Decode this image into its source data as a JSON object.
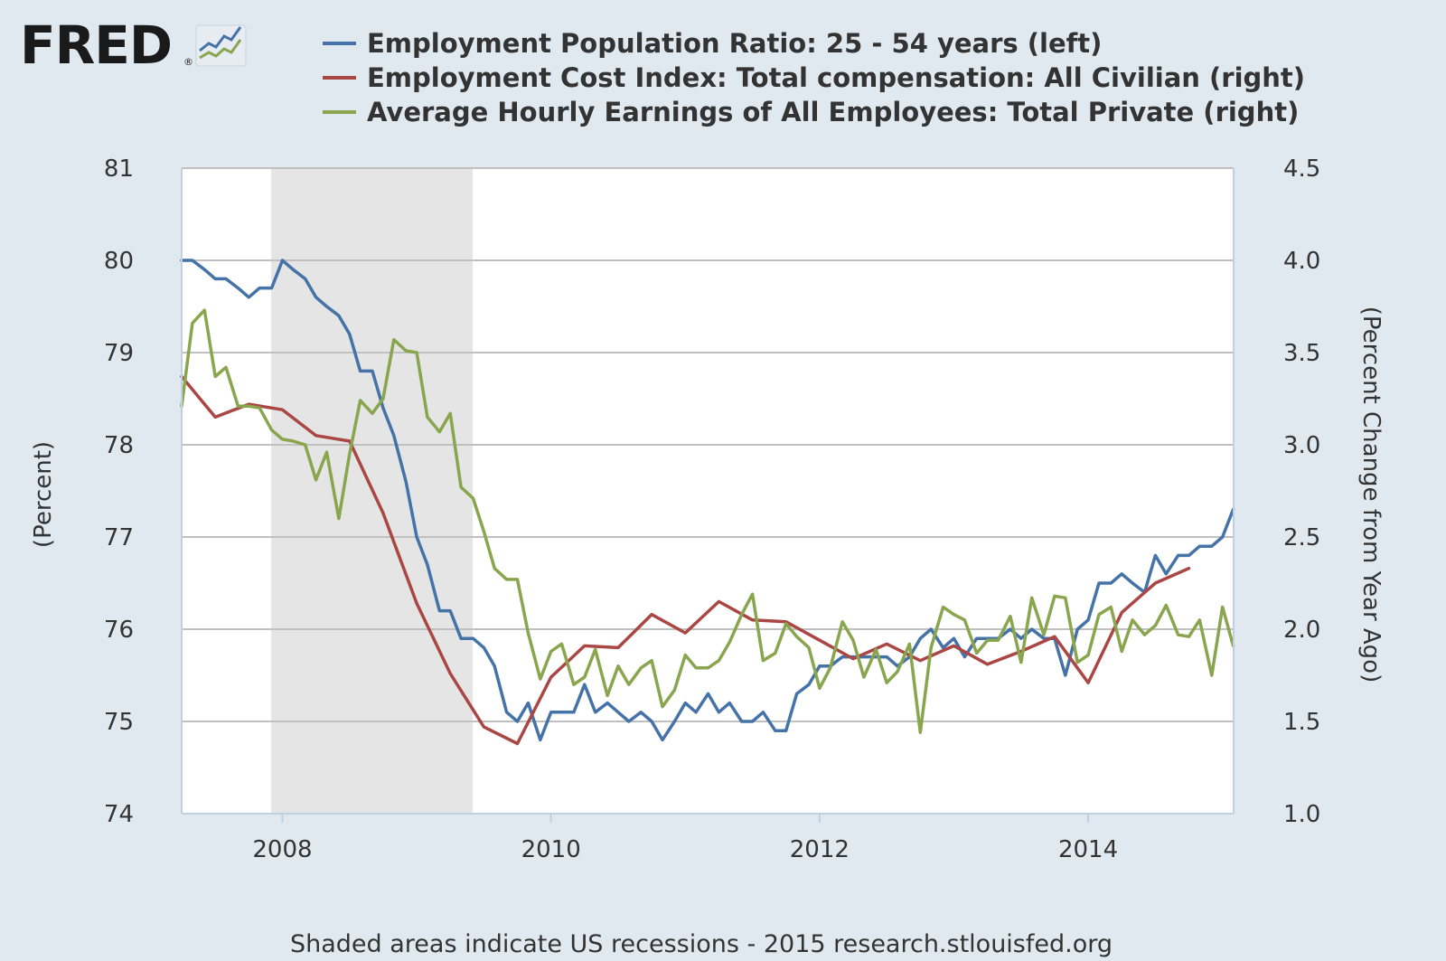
{
  "logo": {
    "text": "FRED",
    "reg_mark": "®"
  },
  "legend": [
    {
      "label": "Employment Population Ratio: 25 - 54 years (left)",
      "color": "#4572a7"
    },
    {
      "label": "Employment Cost Index: Total compensation: All Civilian (right)",
      "color": "#aa4643"
    },
    {
      "label": "Average Hourly Earnings of All Employees: Total Private (right)",
      "color": "#89a54e"
    }
  ],
  "footer": "Shaded areas indicate US recessions - 2015 research.stlouisfed.org",
  "chart_data": {
    "type": "line",
    "y_left": {
      "label": "(Percent)",
      "range": [
        74,
        81
      ],
      "ticks": [
        "74",
        "75",
        "76",
        "77",
        "78",
        "79",
        "80",
        "81"
      ]
    },
    "y_right": {
      "label": "(Percent Change from Year Ago)",
      "range": [
        1.0,
        4.5
      ],
      "ticks": [
        "1.0",
        "1.5",
        "2.0",
        "2.5",
        "3.0",
        "3.5",
        "4.0",
        "4.5"
      ]
    },
    "x_axis": {
      "range": [
        2007.25,
        2015.083
      ],
      "ticks": [
        2008,
        2010,
        2012,
        2014
      ],
      "tick_labels": [
        "2008",
        "2010",
        "2012",
        "2014"
      ]
    },
    "grid": true,
    "legend_position": "top",
    "recessions": [
      [
        2007.917,
        2009.417
      ]
    ],
    "series": [
      {
        "name": "Employment Population Ratio: 25 - 54 years (left)",
        "axis": "left",
        "color": "#4572a7",
        "points": [
          [
            2007.25,
            80.0
          ],
          [
            2007.33,
            80.0
          ],
          [
            2007.42,
            79.9
          ],
          [
            2007.5,
            79.8
          ],
          [
            2007.58,
            79.8
          ],
          [
            2007.67,
            79.7
          ],
          [
            2007.75,
            79.6
          ],
          [
            2007.83,
            79.7
          ],
          [
            2007.92,
            79.7
          ],
          [
            2008.0,
            80.0
          ],
          [
            2008.08,
            79.9
          ],
          [
            2008.17,
            79.8
          ],
          [
            2008.25,
            79.6
          ],
          [
            2008.33,
            79.5
          ],
          [
            2008.42,
            79.4
          ],
          [
            2008.5,
            79.2
          ],
          [
            2008.58,
            78.8
          ],
          [
            2008.67,
            78.8
          ],
          [
            2008.75,
            78.4
          ],
          [
            2008.83,
            78.1
          ],
          [
            2008.92,
            77.6
          ],
          [
            2009.0,
            77.0
          ],
          [
            2009.08,
            76.7
          ],
          [
            2009.17,
            76.2
          ],
          [
            2009.25,
            76.2
          ],
          [
            2009.33,
            75.9
          ],
          [
            2009.42,
            75.9
          ],
          [
            2009.5,
            75.8
          ],
          [
            2009.58,
            75.6
          ],
          [
            2009.67,
            75.1
          ],
          [
            2009.75,
            75.0
          ],
          [
            2009.83,
            75.2
          ],
          [
            2009.92,
            74.8
          ],
          [
            2010.0,
            75.1
          ],
          [
            2010.08,
            75.1
          ],
          [
            2010.17,
            75.1
          ],
          [
            2010.25,
            75.4
          ],
          [
            2010.33,
            75.1
          ],
          [
            2010.42,
            75.2
          ],
          [
            2010.5,
            75.1
          ],
          [
            2010.58,
            75.0
          ],
          [
            2010.67,
            75.1
          ],
          [
            2010.75,
            75.0
          ],
          [
            2010.83,
            74.8
          ],
          [
            2010.92,
            75.0
          ],
          [
            2011.0,
            75.2
          ],
          [
            2011.08,
            75.1
          ],
          [
            2011.17,
            75.3
          ],
          [
            2011.25,
            75.1
          ],
          [
            2011.33,
            75.2
          ],
          [
            2011.42,
            75.0
          ],
          [
            2011.5,
            75.0
          ],
          [
            2011.58,
            75.1
          ],
          [
            2011.67,
            74.9
          ],
          [
            2011.75,
            74.9
          ],
          [
            2011.83,
            75.3
          ],
          [
            2011.92,
            75.4
          ],
          [
            2012.0,
            75.6
          ],
          [
            2012.08,
            75.6
          ],
          [
            2012.17,
            75.7
          ],
          [
            2012.25,
            75.7
          ],
          [
            2012.33,
            75.7
          ],
          [
            2012.42,
            75.7
          ],
          [
            2012.5,
            75.7
          ],
          [
            2012.58,
            75.6
          ],
          [
            2012.67,
            75.7
          ],
          [
            2012.75,
            75.9
          ],
          [
            2012.83,
            76.0
          ],
          [
            2012.92,
            75.8
          ],
          [
            2013.0,
            75.9
          ],
          [
            2013.08,
            75.7
          ],
          [
            2013.17,
            75.9
          ],
          [
            2013.25,
            75.9
          ],
          [
            2013.33,
            75.9
          ],
          [
            2013.42,
            76.0
          ],
          [
            2013.5,
            75.9
          ],
          [
            2013.58,
            76.0
          ],
          [
            2013.67,
            75.9
          ],
          [
            2013.75,
            75.9
          ],
          [
            2013.83,
            75.5
          ],
          [
            2013.92,
            76.0
          ],
          [
            2014.0,
            76.1
          ],
          [
            2014.08,
            76.5
          ],
          [
            2014.17,
            76.5
          ],
          [
            2014.25,
            76.6
          ],
          [
            2014.33,
            76.5
          ],
          [
            2014.42,
            76.4
          ],
          [
            2014.5,
            76.8
          ],
          [
            2014.58,
            76.6
          ],
          [
            2014.67,
            76.8
          ],
          [
            2014.75,
            76.8
          ],
          [
            2014.83,
            76.9
          ],
          [
            2014.92,
            76.9
          ],
          [
            2015.0,
            77.0
          ],
          [
            2015.08,
            77.3
          ]
        ]
      },
      {
        "name": "Employment Cost Index: Total compensation: All Civilian (right)",
        "axis": "right",
        "color": "#aa4643",
        "points": [
          [
            2007.25,
            3.37
          ],
          [
            2007.5,
            3.15
          ],
          [
            2007.75,
            3.22
          ],
          [
            2008.0,
            3.19
          ],
          [
            2008.25,
            3.05
          ],
          [
            2008.5,
            3.02
          ],
          [
            2008.75,
            2.63
          ],
          [
            2009.0,
            2.14
          ],
          [
            2009.25,
            1.76
          ],
          [
            2009.5,
            1.47
          ],
          [
            2009.75,
            1.38
          ],
          [
            2010.0,
            1.74
          ],
          [
            2010.25,
            1.91
          ],
          [
            2010.5,
            1.9
          ],
          [
            2010.75,
            2.08
          ],
          [
            2011.0,
            1.98
          ],
          [
            2011.25,
            2.15
          ],
          [
            2011.5,
            2.05
          ],
          [
            2011.75,
            2.04
          ],
          [
            2012.0,
            1.94
          ],
          [
            2012.25,
            1.84
          ],
          [
            2012.5,
            1.92
          ],
          [
            2012.75,
            1.83
          ],
          [
            2013.0,
            1.91
          ],
          [
            2013.25,
            1.81
          ],
          [
            2013.5,
            1.88
          ],
          [
            2013.75,
            1.96
          ],
          [
            2014.0,
            1.71
          ],
          [
            2014.25,
            2.09
          ],
          [
            2014.5,
            2.25
          ],
          [
            2014.75,
            2.33
          ]
        ]
      },
      {
        "name": "Average Hourly Earnings of All Employees: Total Private (right)",
        "axis": "right",
        "color": "#89a54e",
        "points": [
          [
            2007.25,
            3.21
          ],
          [
            2007.33,
            3.66
          ],
          [
            2007.42,
            3.73
          ],
          [
            2007.5,
            3.37
          ],
          [
            2007.58,
            3.42
          ],
          [
            2007.67,
            3.21
          ],
          [
            2007.75,
            3.21
          ],
          [
            2007.83,
            3.2
          ],
          [
            2007.92,
            3.08
          ],
          [
            2008.0,
            3.03
          ],
          [
            2008.08,
            3.02
          ],
          [
            2008.17,
            3.0
          ],
          [
            2008.25,
            2.81
          ],
          [
            2008.33,
            2.96
          ],
          [
            2008.42,
            2.6
          ],
          [
            2008.5,
            2.95
          ],
          [
            2008.58,
            3.24
          ],
          [
            2008.67,
            3.17
          ],
          [
            2008.75,
            3.25
          ],
          [
            2008.83,
            3.57
          ],
          [
            2008.92,
            3.51
          ],
          [
            2009.0,
            3.5
          ],
          [
            2009.08,
            3.15
          ],
          [
            2009.17,
            3.07
          ],
          [
            2009.25,
            3.17
          ],
          [
            2009.33,
            2.77
          ],
          [
            2009.42,
            2.71
          ],
          [
            2009.5,
            2.53
          ],
          [
            2009.58,
            2.33
          ],
          [
            2009.67,
            2.27
          ],
          [
            2009.75,
            2.27
          ],
          [
            2009.83,
            1.98
          ],
          [
            2009.92,
            1.73
          ],
          [
            2010.0,
            1.88
          ],
          [
            2010.08,
            1.92
          ],
          [
            2010.17,
            1.7
          ],
          [
            2010.25,
            1.74
          ],
          [
            2010.33,
            1.89
          ],
          [
            2010.42,
            1.64
          ],
          [
            2010.5,
            1.8
          ],
          [
            2010.58,
            1.7
          ],
          [
            2010.67,
            1.79
          ],
          [
            2010.75,
            1.83
          ],
          [
            2010.83,
            1.58
          ],
          [
            2010.92,
            1.67
          ],
          [
            2011.0,
            1.86
          ],
          [
            2011.08,
            1.79
          ],
          [
            2011.17,
            1.79
          ],
          [
            2011.25,
            1.83
          ],
          [
            2011.33,
            1.93
          ],
          [
            2011.42,
            2.08
          ],
          [
            2011.5,
            2.19
          ],
          [
            2011.58,
            1.83
          ],
          [
            2011.67,
            1.87
          ],
          [
            2011.75,
            2.03
          ],
          [
            2011.83,
            1.96
          ],
          [
            2011.92,
            1.9
          ],
          [
            2012.0,
            1.68
          ],
          [
            2012.08,
            1.79
          ],
          [
            2012.17,
            2.04
          ],
          [
            2012.25,
            1.94
          ],
          [
            2012.33,
            1.74
          ],
          [
            2012.42,
            1.89
          ],
          [
            2012.5,
            1.71
          ],
          [
            2012.58,
            1.77
          ],
          [
            2012.67,
            1.92
          ],
          [
            2012.75,
            1.44
          ],
          [
            2012.83,
            1.9
          ],
          [
            2012.92,
            2.12
          ],
          [
            2013.0,
            2.08
          ],
          [
            2013.08,
            2.05
          ],
          [
            2013.17,
            1.87
          ],
          [
            2013.25,
            1.94
          ],
          [
            2013.33,
            1.94
          ],
          [
            2013.42,
            2.07
          ],
          [
            2013.5,
            1.82
          ],
          [
            2013.58,
            2.17
          ],
          [
            2013.67,
            1.97
          ],
          [
            2013.75,
            2.18
          ],
          [
            2013.83,
            2.17
          ],
          [
            2013.92,
            1.82
          ],
          [
            2014.0,
            1.86
          ],
          [
            2014.08,
            2.08
          ],
          [
            2014.17,
            2.12
          ],
          [
            2014.25,
            1.88
          ],
          [
            2014.33,
            2.05
          ],
          [
            2014.42,
            1.97
          ],
          [
            2014.5,
            2.02
          ],
          [
            2014.58,
            2.13
          ],
          [
            2014.67,
            1.97
          ],
          [
            2014.75,
            1.96
          ],
          [
            2014.83,
            2.05
          ],
          [
            2014.92,
            1.75
          ],
          [
            2015.0,
            2.12
          ],
          [
            2015.08,
            1.91
          ]
        ]
      }
    ]
  }
}
